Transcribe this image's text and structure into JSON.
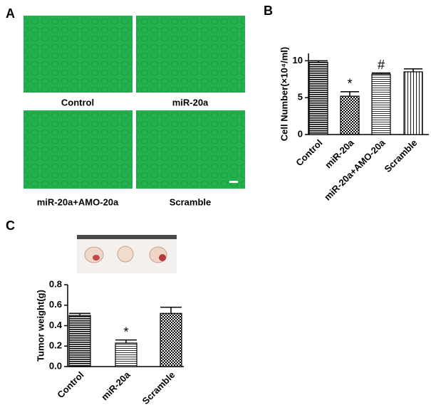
{
  "panel_labels": [
    "A",
    "B",
    "C"
  ],
  "micrographs": [
    "Control",
    "miR-20a",
    "miR-20a+AMO-20a",
    "Scramble"
  ],
  "chart_data": [
    {
      "type": "bar",
      "y_label": "Cell Number(×10⁴/ml)",
      "categories": [
        "Control",
        "miR-20a",
        "miR-20a+AMO-20a",
        "Scramble"
      ],
      "values": [
        9.8,
        5.2,
        8.2,
        8.5
      ],
      "errors": [
        0.2,
        0.6,
        0.15,
        0.4
      ],
      "annotations": [
        null,
        "*",
        "#",
        null
      ],
      "patterns": [
        "hlines",
        "checker",
        "hlines-light",
        "vlines"
      ],
      "color": "#000000",
      "ylim": [
        0,
        11
      ],
      "yticks": [
        0,
        5,
        10
      ],
      "grid": false
    },
    {
      "type": "bar",
      "y_label": "Tumor weight(g)",
      "categories": [
        "Control",
        "miR-20a",
        "Scramble"
      ],
      "values": [
        0.5,
        0.23,
        0.52
      ],
      "errors": [
        0.02,
        0.03,
        0.06
      ],
      "annotations": [
        null,
        "*",
        null
      ],
      "patterns": [
        "hlines",
        "hlines-light",
        "checker"
      ],
      "color": "#000000",
      "ylim": [
        0,
        0.8
      ],
      "yticks": [
        {
          "value": 0,
          "label": "0.0"
        },
        0.2,
        0.4,
        0.6,
        0.8
      ],
      "grid": false
    }
  ]
}
